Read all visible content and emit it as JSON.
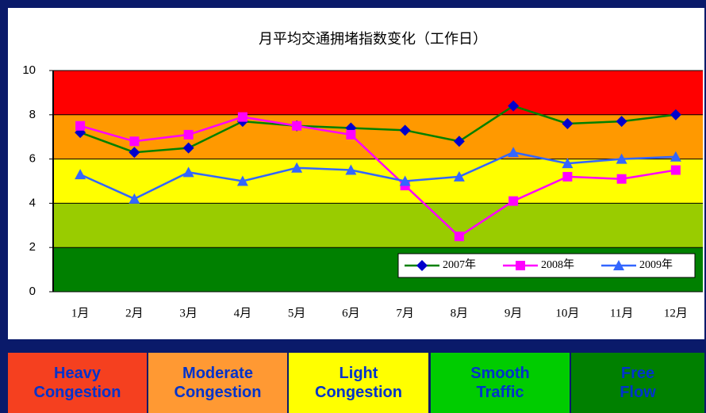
{
  "chart_data": {
    "type": "line",
    "title": "月平均交通拥堵指数变化（工作日）",
    "categories": [
      "1月",
      "2月",
      "3月",
      "4月",
      "5月",
      "6月",
      "7月",
      "8月",
      "9月",
      "10月",
      "11月",
      "12月"
    ],
    "series": [
      {
        "name": "2007年",
        "color": "#008000",
        "marker": "diamond",
        "marker_color": "#0000cc",
        "values": [
          7.2,
          6.3,
          6.5,
          7.7,
          7.5,
          7.4,
          7.3,
          6.8,
          8.4,
          7.6,
          7.7,
          8.0
        ]
      },
      {
        "name": "2008年",
        "color": "#ff00ff",
        "marker": "square",
        "marker_color": "#ff00ff",
        "values": [
          7.5,
          6.8,
          7.1,
          7.9,
          7.5,
          7.1,
          4.8,
          2.5,
          4.1,
          5.2,
          5.1,
          5.5
        ]
      },
      {
        "name": "2009年",
        "color": "#3366ff",
        "marker": "triangle",
        "marker_color": "#3366ff",
        "values": [
          5.3,
          4.2,
          5.4,
          5.0,
          5.6,
          5.5,
          5.0,
          5.2,
          6.3,
          5.8,
          6.0,
          6.1
        ]
      }
    ],
    "bands": [
      {
        "from": 0,
        "to": 2,
        "color": "#008000"
      },
      {
        "from": 2,
        "to": 4,
        "color": "#99cc00"
      },
      {
        "from": 4,
        "to": 6,
        "color": "#ffff00"
      },
      {
        "from": 6,
        "to": 8,
        "color": "#ff9900"
      },
      {
        "from": 8,
        "to": 10,
        "color": "#ff0000"
      }
    ],
    "ylim": [
      0,
      10
    ],
    "yticks": [
      0,
      2,
      4,
      6,
      8,
      10
    ],
    "legend": "bottom-right"
  },
  "level_legend": [
    {
      "label": "Heavy Congestion",
      "color": "#f5401f"
    },
    {
      "label": "Moderate Congestion",
      "color": "#ff9933"
    },
    {
      "label": "Light Congestion",
      "color": "#ffff00"
    },
    {
      "label": "Smooth Traffic",
      "color": "#00cc00"
    },
    {
      "label": "Free Flow",
      "color": "#008000"
    }
  ]
}
